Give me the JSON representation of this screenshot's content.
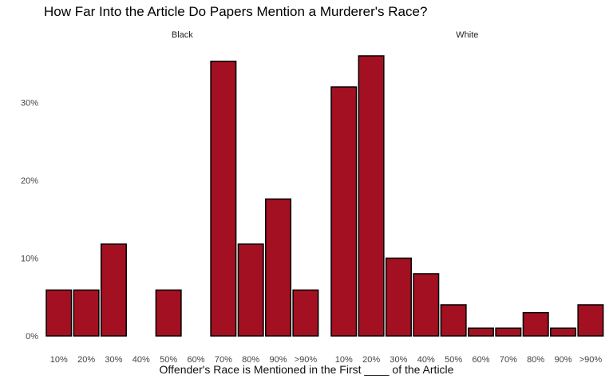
{
  "chart_data": {
    "type": "bar",
    "title": "How Far Into the Article Do Papers Mention a Murderer's Race?",
    "xlabel": "Offender's Race is Mentioned in the First ____ of the Article",
    "ylabel": "",
    "categories": [
      "10%",
      "20%",
      "30%",
      "40%",
      "50%",
      "60%",
      "70%",
      "80%",
      "90%",
      ">90%"
    ],
    "y_ticks": [
      "0%",
      "10%",
      "20%",
      "30%"
    ],
    "ylim": [
      0,
      37
    ],
    "grid": false,
    "bar_color": "#a31021",
    "facets": [
      {
        "label": "Black",
        "values": [
          5.9,
          5.9,
          11.8,
          0,
          5.9,
          0,
          35.3,
          11.8,
          17.6,
          5.9
        ]
      },
      {
        "label": "White",
        "values": [
          32,
          36,
          10,
          8,
          4,
          1,
          1,
          3,
          1,
          4
        ]
      }
    ]
  }
}
